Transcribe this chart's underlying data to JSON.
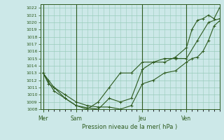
{
  "title": "Pression niveau de la mer( hPa )",
  "bg_color": "#cce8e8",
  "grid_color": "#99ccbb",
  "line_color": "#2d5a1e",
  "ylim": [
    1008,
    1022.5
  ],
  "ytick_min": 1008,
  "ytick_max": 1022,
  "day_labels": [
    "Mer",
    "Sam",
    "Jeu",
    "Ven"
  ],
  "day_positions": [
    0,
    6,
    18,
    26
  ],
  "xlim": [
    -0.5,
    32
  ],
  "series1_x": [
    0,
    1,
    2,
    4,
    6,
    8,
    10,
    12,
    14,
    16,
    18,
    20,
    22,
    24,
    26,
    27,
    28,
    29,
    30,
    31,
    32
  ],
  "series1_y": [
    1013.0,
    1012.0,
    1011.0,
    1010.0,
    1009.0,
    1008.5,
    1008.3,
    1008.3,
    1008.0,
    1008.5,
    1011.5,
    1012.0,
    1013.0,
    1013.3,
    1014.5,
    1015.0,
    1015.2,
    1016.0,
    1017.5,
    1019.5,
    1020.2
  ],
  "series2_x": [
    0,
    1,
    2,
    4,
    6,
    8,
    10,
    12,
    14,
    16,
    18,
    20,
    22,
    24,
    26,
    27,
    28,
    29,
    30,
    31,
    32
  ],
  "series2_y": [
    1013.0,
    1011.5,
    1011.0,
    1009.5,
    1008.5,
    1008.2,
    1008.0,
    1009.5,
    1009.0,
    1009.5,
    1013.5,
    1014.5,
    1014.5,
    1015.2,
    1016.5,
    1019.0,
    1020.3,
    1020.5,
    1021.0,
    1020.5,
    1022.0
  ],
  "series3_x": [
    0,
    2,
    4,
    6,
    8,
    10,
    12,
    14,
    16,
    18,
    20,
    22,
    24,
    26,
    28,
    30,
    32
  ],
  "series3_y": [
    1013.0,
    1010.5,
    1009.5,
    1008.5,
    1008.0,
    1009.0,
    1011.0,
    1013.0,
    1013.0,
    1014.5,
    1014.5,
    1015.0,
    1015.0,
    1015.0,
    1017.5,
    1020.0,
    1020.5
  ]
}
